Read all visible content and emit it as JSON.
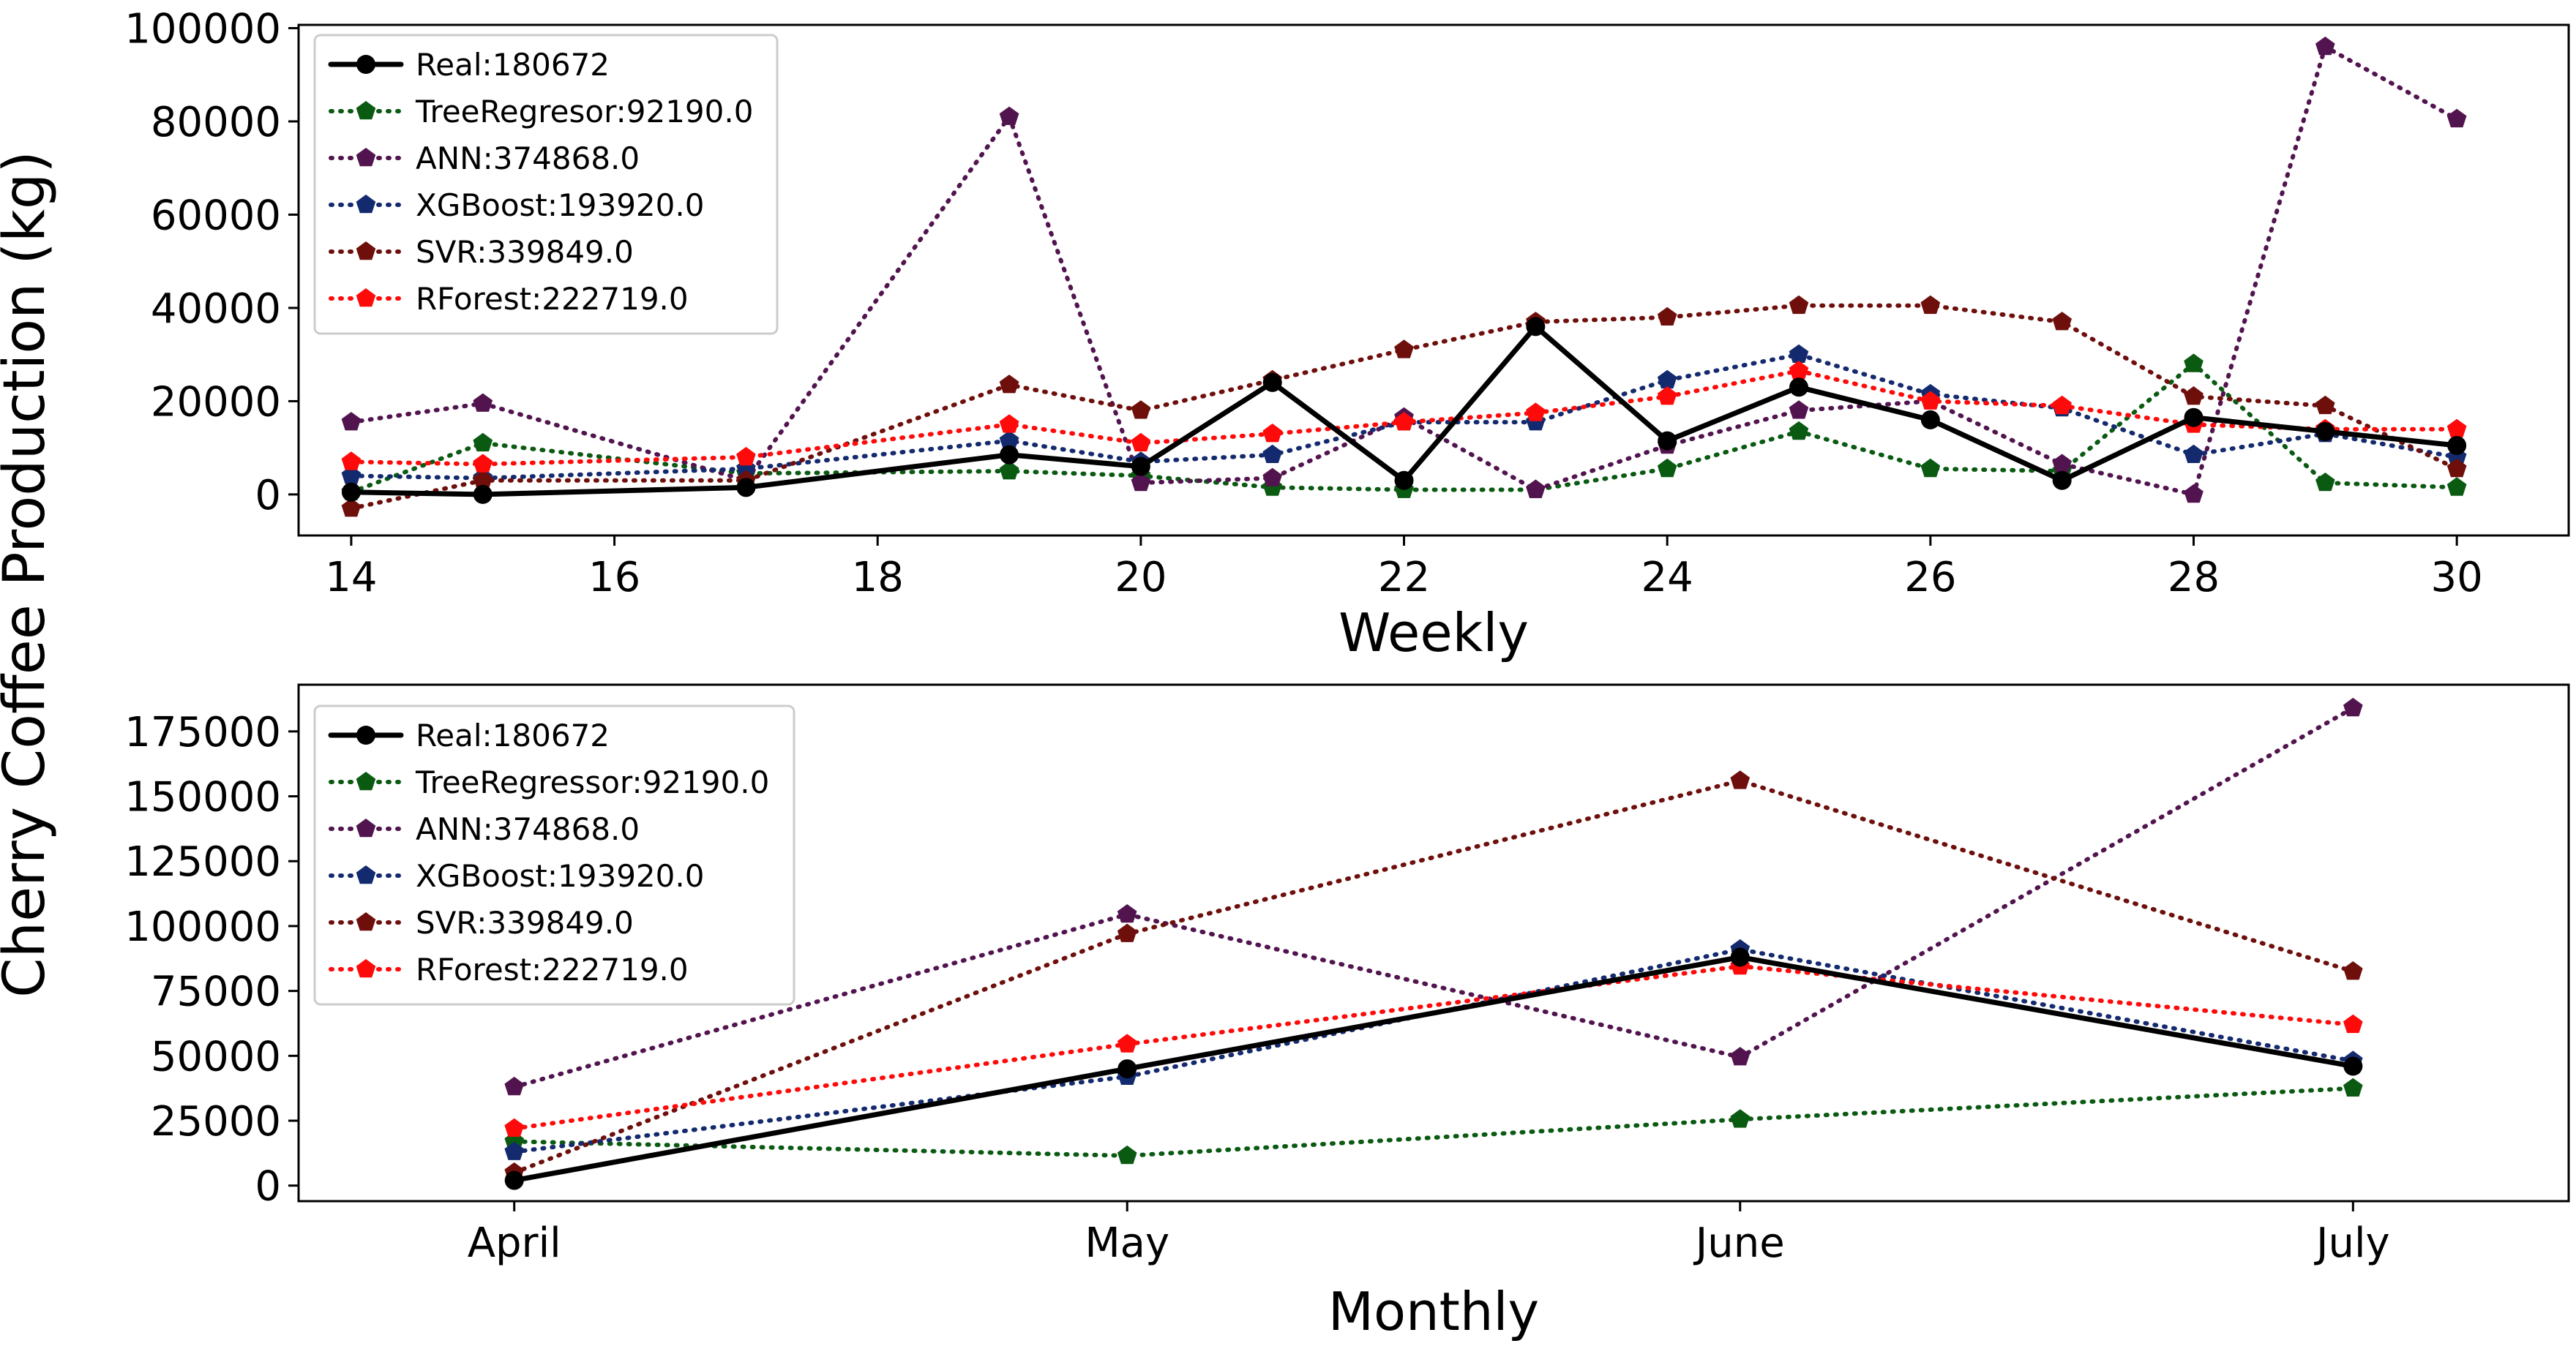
{
  "ylabel": "Cherry Coffee Production (kg)",
  "colors": {
    "real": "#000000",
    "tree": "#0a5a12",
    "ann": "#52144f",
    "xgb": "#142a6e",
    "svr": "#6e0f0c",
    "rf": "#ff0a0a"
  },
  "chart_data": [
    {
      "type": "line",
      "title": "",
      "xlabel": "Weekly",
      "ylabel": "Cherry Coffee Production (kg)",
      "legend_position": "top-left",
      "grid": false,
      "xlim": [
        13.6,
        30.85
      ],
      "ylim": [
        -8800,
        100700
      ],
      "xticks": [
        14,
        16,
        18,
        20,
        22,
        24,
        26,
        28,
        30
      ],
      "yticks": [
        0,
        20000,
        40000,
        60000,
        80000,
        100000
      ],
      "series": [
        {
          "name": "Real:180672",
          "key": "real",
          "style": "solid",
          "x": [
            14,
            15,
            17,
            19,
            20,
            21,
            22,
            23,
            24,
            25,
            26,
            27,
            28,
            29,
            30
          ],
          "y": [
            500,
            0,
            1500,
            8500,
            6000,
            24000,
            3000,
            36000,
            11500,
            23000,
            16000,
            3000,
            16500,
            13500,
            10500
          ]
        },
        {
          "name": "TreeRegresor:92190.0",
          "key": "tree",
          "style": "dotted",
          "x": [
            14,
            15,
            17,
            19,
            20,
            21,
            22,
            23,
            24,
            25,
            26,
            27,
            28,
            29,
            30
          ],
          "y": [
            500,
            11000,
            4500,
            5000,
            4000,
            1500,
            1000,
            1000,
            5500,
            13500,
            5500,
            5000,
            28000,
            2500,
            1500
          ]
        },
        {
          "name": "ANN:374868.0",
          "key": "ann",
          "style": "dotted",
          "x": [
            14,
            15,
            17,
            19,
            20,
            21,
            22,
            23,
            24,
            25,
            26,
            27,
            28,
            29,
            30
          ],
          "y": [
            15500,
            19500,
            3000,
            81000,
            2500,
            3500,
            16500,
            1000,
            10500,
            18000,
            20000,
            6500,
            0,
            96000,
            80500
          ]
        },
        {
          "name": "XGBoost:193920.0",
          "key": "xgb",
          "style": "dotted",
          "x": [
            14,
            15,
            17,
            19,
            20,
            21,
            22,
            23,
            24,
            25,
            26,
            27,
            28,
            29,
            30
          ],
          "y": [
            4000,
            3500,
            5500,
            11500,
            7000,
            8500,
            15500,
            15500,
            24500,
            30000,
            21500,
            18500,
            8500,
            13000,
            8000
          ]
        },
        {
          "name": "SVR:339849.0",
          "key": "svr",
          "style": "dotted",
          "x": [
            14,
            15,
            17,
            19,
            20,
            21,
            22,
            23,
            24,
            25,
            26,
            27,
            28,
            29,
            30
          ],
          "y": [
            -3000,
            3000,
            3000,
            23500,
            18000,
            24500,
            31000,
            37000,
            38000,
            40500,
            40500,
            37000,
            21000,
            19000,
            5500
          ]
        },
        {
          "name": "RForest:222719.0",
          "key": "rf",
          "style": "dotted",
          "x": [
            14,
            15,
            17,
            19,
            20,
            21,
            22,
            23,
            24,
            25,
            26,
            27,
            28,
            29,
            30
          ],
          "y": [
            7000,
            6500,
            8000,
            15000,
            11000,
            13000,
            15500,
            17500,
            21000,
            26500,
            20000,
            19000,
            15000,
            14000,
            14000
          ]
        }
      ]
    },
    {
      "type": "line",
      "title": "",
      "xlabel": "Monthly",
      "ylabel": "Cherry Coffee Production (kg)",
      "legend_position": "top-left",
      "grid": false,
      "categories": [
        "April",
        "May",
        "June",
        "July"
      ],
      "ylim": [
        -6000,
        193000
      ],
      "yticks": [
        0,
        25000,
        50000,
        75000,
        100000,
        125000,
        150000,
        175000
      ],
      "series": [
        {
          "name": "Real:180672",
          "key": "real",
          "style": "solid",
          "values": [
            2000,
            45000,
            88000,
            46000
          ]
        },
        {
          "name": "TreeRegressor:92190.0",
          "key": "tree",
          "style": "dotted",
          "values": [
            17000,
            11500,
            25500,
            37500
          ]
        },
        {
          "name": "ANN:374868.0",
          "key": "ann",
          "style": "dotted",
          "values": [
            38000,
            104500,
            49500,
            184000
          ]
        },
        {
          "name": "XGBoost:193920.0",
          "key": "xgb",
          "style": "dotted",
          "values": [
            13000,
            42000,
            91000,
            48000
          ]
        },
        {
          "name": "SVR:339849.0",
          "key": "svr",
          "style": "dotted",
          "values": [
            5000,
            97000,
            156000,
            82500
          ]
        },
        {
          "name": "RForest:222719.0",
          "key": "rf",
          "style": "dotted",
          "values": [
            22000,
            54500,
            84500,
            62000
          ]
        }
      ]
    }
  ]
}
